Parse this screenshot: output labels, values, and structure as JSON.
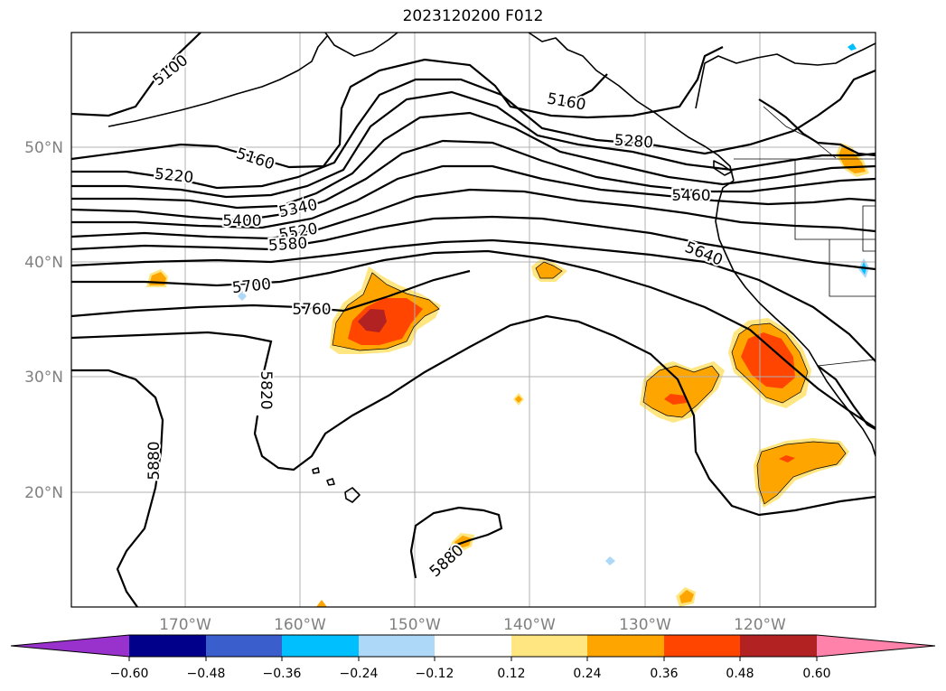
{
  "title": "2023120200 F012",
  "lat_labels": [
    "50°N",
    "40°N",
    "30°N",
    "20°N"
  ],
  "lon_labels": [
    "170°W",
    "160°W",
    "150°W",
    "140°W",
    "130°W",
    "120°W"
  ],
  "contour_labels": [
    "5100",
    "5160",
    "5220",
    "5160",
    "5280",
    "5400",
    "5340",
    "5520",
    "5580",
    "5460",
    "5640",
    "5700",
    "5760",
    "5820",
    "5880",
    "5880"
  ],
  "colorbar": {
    "tick_labels": [
      "−0.60",
      "−0.48",
      "−0.36",
      "−0.24",
      "−0.12",
      "0.12",
      "0.24",
      "0.36",
      "0.48",
      "0.60"
    ],
    "colors": [
      "#9932cc",
      "#00008b",
      "#3a5fcd",
      "#00bfff",
      "#add8f7",
      "#ffffff",
      "#ffe680",
      "#ffa500",
      "#ff4500",
      "#b22222",
      "#ff82ab"
    ]
  }
}
